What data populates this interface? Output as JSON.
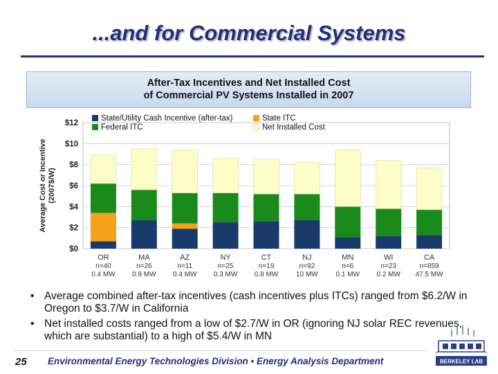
{
  "slide": {
    "title": "...and for Commercial Systems",
    "page_number": "25",
    "footer": "Environmental Energy Technologies Division • Energy Analysis Department",
    "logo_text": "BERKELEY LAB",
    "logo_icon": "berkeley-lab-logo-icon",
    "bullets": [
      "Average combined after-tax incentives (cash incentives plus ITCs) ranged from $6.2/W in Oregon to $3.7/W in California",
      "Net installed costs ranged from a low of $2.7/W in OR (ignoring NJ solar REC revenues, which are substantial) to a high of $5.4/W in MN"
    ]
  },
  "colors": {
    "title": "#1f2f7a",
    "state_utility": "#1a3a6b",
    "state_itc": "#f6a11a",
    "federal_itc": "#1a8a1a",
    "net_installed": "#fdfdc8"
  },
  "chart_data": {
    "type": "bar",
    "stacked": true,
    "title_line1": "After-Tax Incentives and Net Installed Cost",
    "title_line2": "of Commercial PV Systems Installed in 2007",
    "ylabel_line1": "Average Cost or Incentive",
    "ylabel_line2": "(2007$/W)",
    "ylim": [
      0,
      12
    ],
    "yticks": [
      "$0",
      "$2",
      "$4",
      "$6",
      "$8",
      "$10",
      "$12"
    ],
    "grid": true,
    "legend_position": "top",
    "categories": [
      "OR",
      "MA",
      "AZ",
      "NY",
      "CT",
      "NJ",
      "MN",
      "WI",
      "CA"
    ],
    "sample_sizes": [
      "n=40",
      "n=26",
      "n=11",
      "n=25",
      "n=19",
      "n=92",
      "n=6",
      "n=23",
      "n=859"
    ],
    "capacities": [
      "0.4 MW",
      "0.9 MW",
      "0.4 MW",
      "0.3 MW",
      "0.8 MW",
      "10 MW",
      "0.1 MW",
      "0.2 MW",
      "47.5 MW"
    ],
    "series": [
      {
        "name": "State/Utility Cash Incentive (after-tax)",
        "values": [
          0.7,
          2.7,
          1.9,
          2.5,
          2.6,
          2.7,
          1.1,
          1.2,
          1.3
        ]
      },
      {
        "name": "State ITC",
        "values": [
          2.7,
          0.0,
          0.5,
          0.0,
          0.0,
          0.0,
          0.0,
          0.0,
          0.0
        ]
      },
      {
        "name": "Federal ITC",
        "values": [
          2.8,
          2.9,
          2.9,
          2.8,
          2.6,
          2.5,
          2.9,
          2.6,
          2.4
        ]
      },
      {
        "name": "Net Installed Cost",
        "values": [
          2.7,
          3.9,
          4.1,
          3.3,
          3.3,
          3.0,
          5.4,
          4.6,
          4.0
        ]
      }
    ]
  }
}
